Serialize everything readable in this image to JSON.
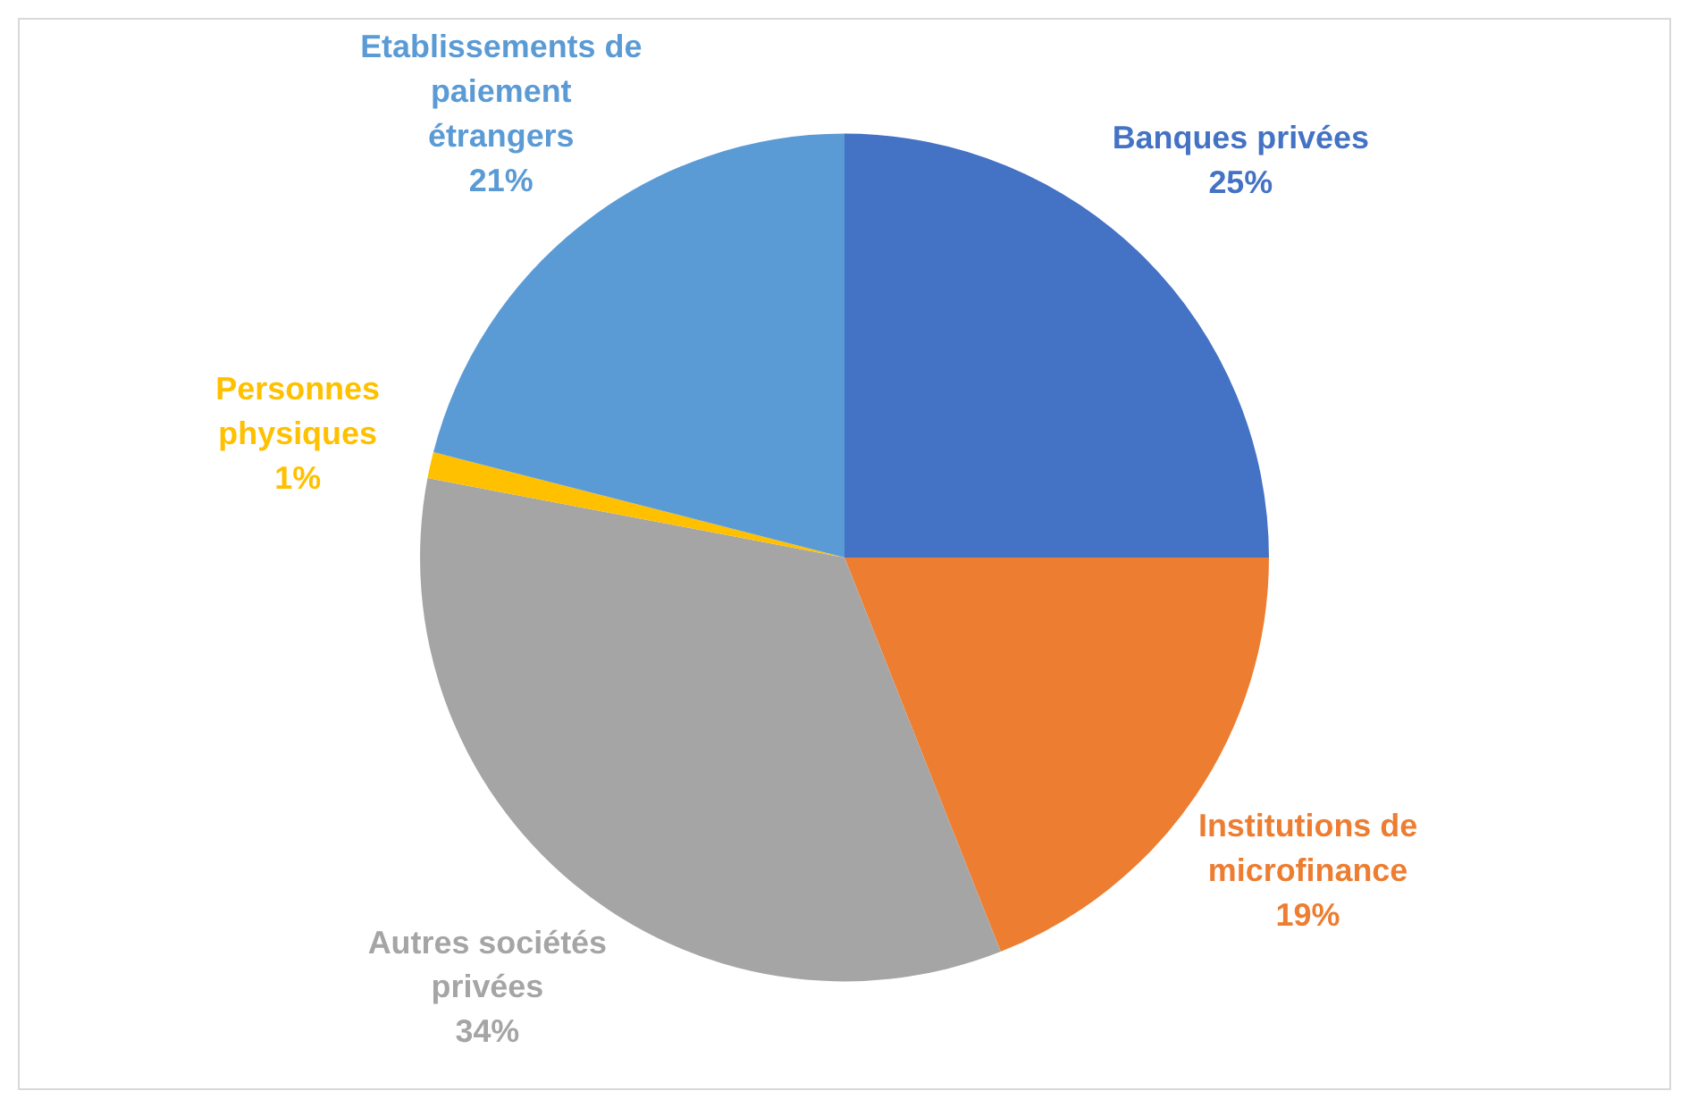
{
  "chart_data": {
    "type": "pie",
    "categories": [
      "Banques privées",
      "Institutions de microfinance",
      "Autres sociétés privées",
      "Personnes physiques",
      "Etablissements de paiement étrangers"
    ],
    "values": [
      25,
      19,
      34,
      1,
      21
    ],
    "colors": [
      "#4472c4",
      "#ed7d31",
      "#a5a5a5",
      "#ffc000",
      "#5b9bd5"
    ],
    "value_labels": [
      "25%",
      "19%",
      "34%",
      "1%",
      "21%"
    ],
    "legend": false
  }
}
